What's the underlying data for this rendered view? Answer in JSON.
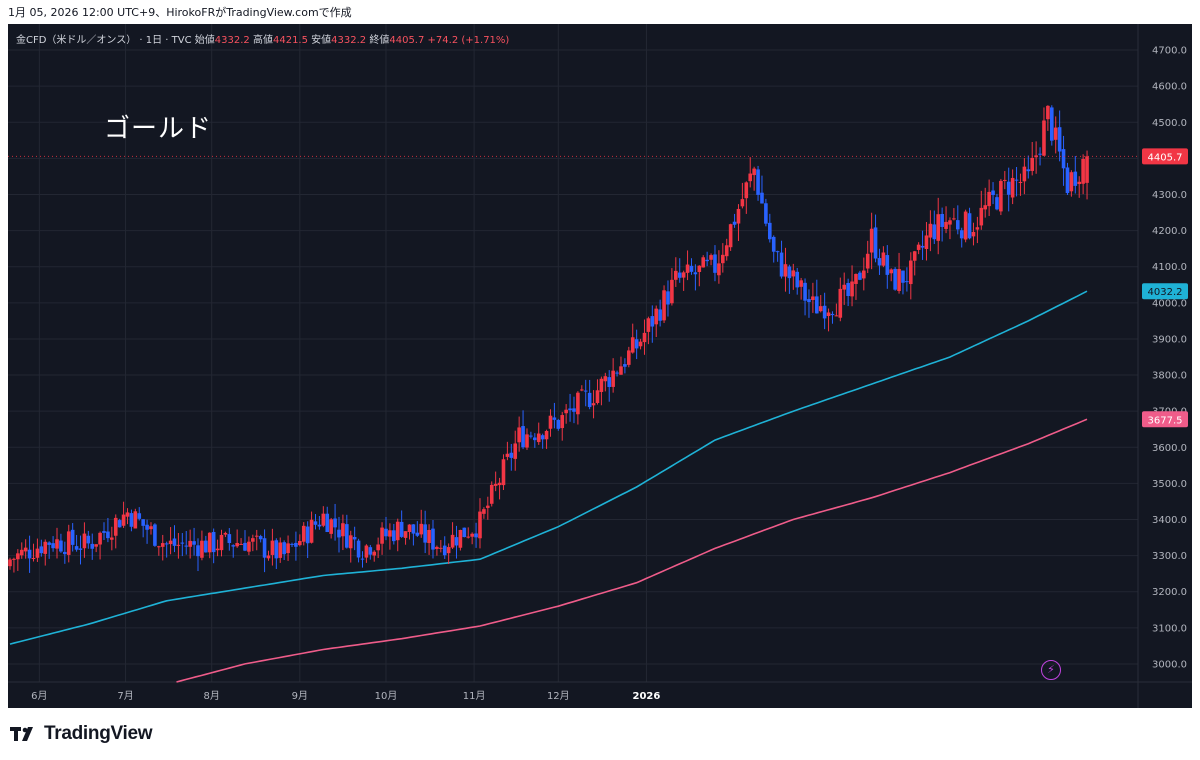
{
  "header": {
    "caption": "1月 05, 2026 12:00 UTC+9、HirokoFRがTradingView.comで作成"
  },
  "legend": {
    "symbol": "金CFD（米ドル／オンス） · 1日 · TVC",
    "open_label": "始値",
    "open_value": "4332.2",
    "high_label": "高値",
    "high_value": "4421.5",
    "low_label": "安値",
    "low_value": "4332.2",
    "close_label": "終値",
    "close_value": "4405.7",
    "change": "+74.2 (+1.71%)"
  },
  "overlay_title": "ゴールド",
  "footer": {
    "brand": "TradingView"
  },
  "colors": {
    "background": "#131722",
    "grid": "#232733",
    "up": "#f23645",
    "down": "#2962ff",
    "ma_fast": "#1fb2d6",
    "ma_slow": "#ef5c8a"
  },
  "chart_data": {
    "type": "candlestick",
    "title": "金CFD（米ドル／オンス） · 1日 · TVC",
    "period_start": "2025-05-22",
    "period_end": "2026-01-05",
    "ylim": [
      2950,
      4750
    ],
    "y_ticks": [
      "4700.0",
      "4600.0",
      "4500.0",
      "4400.0",
      "4300.0",
      "4200.0",
      "4100.0",
      "4000.0",
      "3900.0",
      "3800.0",
      "3700.0",
      "3600.0",
      "3500.0",
      "3400.0",
      "3300.0",
      "3200.0",
      "3100.0",
      "3000.0"
    ],
    "x_ticks": [
      "6月",
      "7月",
      "8月",
      "9月",
      "10月",
      "11月",
      "12月",
      "2026"
    ],
    "last_price_label": "4405.7",
    "ma_fast_label": "4032.2",
    "ma_slow_label": "3677.5",
    "price_path": [
      {
        "week": 0,
        "close": 3290
      },
      {
        "week": 2,
        "close": 3340
      },
      {
        "week": 4,
        "close": 3330
      },
      {
        "week": 6,
        "close": 3420
      },
      {
        "week": 8,
        "close": 3330
      },
      {
        "week": 10,
        "close": 3330
      },
      {
        "week": 12,
        "close": 3340
      },
      {
        "week": 14,
        "close": 3300
      },
      {
        "week": 16,
        "close": 3410
      },
      {
        "week": 18,
        "close": 3320
      },
      {
        "week": 20,
        "close": 3380
      },
      {
        "week": 22,
        "close": 3330
      },
      {
        "week": 24,
        "close": 3390
      },
      {
        "week": 26,
        "close": 3630
      },
      {
        "week": 28,
        "close": 3670
      },
      {
        "week": 30,
        "close": 3760
      },
      {
        "week": 32,
        "close": 3880
      },
      {
        "week": 34,
        "close": 4060
      },
      {
        "week": 36,
        "close": 4100
      },
      {
        "week": 38,
        "close": 4370
      },
      {
        "week": 39,
        "close": 4130
      },
      {
        "week": 41,
        "close": 3990
      },
      {
        "week": 42,
        "close": 4000
      },
      {
        "week": 43,
        "close": 4020
      },
      {
        "week": 44,
        "close": 4180
      },
      {
        "week": 45,
        "close": 4060
      },
      {
        "week": 46,
        "close": 4080
      },
      {
        "week": 47,
        "close": 4200
      },
      {
        "week": 48,
        "close": 4230
      },
      {
        "week": 49,
        "close": 4210
      },
      {
        "week": 51,
        "close": 4330
      },
      {
        "week": 52,
        "close": 4340
      },
      {
        "week": 53,
        "close": 4520
      },
      {
        "week": 54,
        "close": 4330
      },
      {
        "week": 55,
        "close": 4405.7
      }
    ],
    "ma_fast_points": [
      {
        "week": 0,
        "value": 3055
      },
      {
        "week": 4,
        "value": 3110
      },
      {
        "week": 8,
        "value": 3175
      },
      {
        "week": 12,
        "value": 3210
      },
      {
        "week": 16,
        "value": 3245
      },
      {
        "week": 20,
        "value": 3265
      },
      {
        "week": 24,
        "value": 3290
      },
      {
        "week": 28,
        "value": 3380
      },
      {
        "week": 32,
        "value": 3490
      },
      {
        "week": 36,
        "value": 3620
      },
      {
        "week": 40,
        "value": 3700
      },
      {
        "week": 44,
        "value": 3775
      },
      {
        "week": 48,
        "value": 3850
      },
      {
        "week": 52,
        "value": 3950
      },
      {
        "week": 55,
        "value": 4032.2
      }
    ],
    "ma_slow_points": [
      {
        "week": 8.5,
        "value": 2950
      },
      {
        "week": 12,
        "value": 3000
      },
      {
        "week": 16,
        "value": 3040
      },
      {
        "week": 20,
        "value": 3070
      },
      {
        "week": 24,
        "value": 3105
      },
      {
        "week": 28,
        "value": 3160
      },
      {
        "week": 32,
        "value": 3225
      },
      {
        "week": 36,
        "value": 3320
      },
      {
        "week": 40,
        "value": 3400
      },
      {
        "week": 44,
        "value": 3460
      },
      {
        "week": 48,
        "value": 3530
      },
      {
        "week": 52,
        "value": 3610
      },
      {
        "week": 55,
        "value": 3677.5
      }
    ]
  }
}
